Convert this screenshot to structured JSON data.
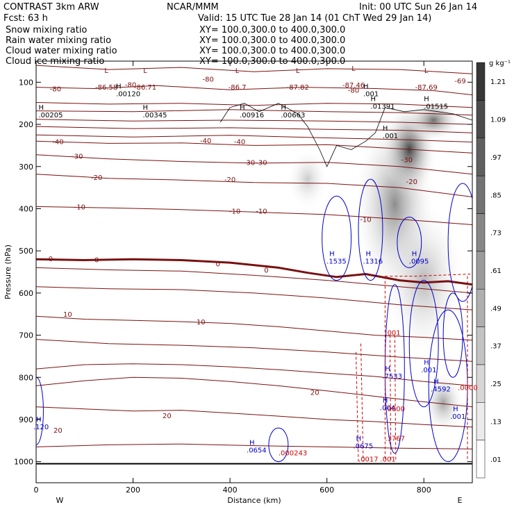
{
  "header": {
    "model": "CONTRAST   3km ARW",
    "center": "NCAR/MMM",
    "init": "Init: 00 UTC Sun 26 Jan 14",
    "fcst": "Fcst:     63 h",
    "valid": "Valid: 15 UTC Tue 28 Jan 14 (01 ChT Wed 29 Jan 14)"
  },
  "fields": [
    {
      "label": "Snow mixing ratio",
      "xy": "XY= 100.0,300.0 to 400.0,300.0",
      "color": "#000000"
    },
    {
      "label": "Rain water mixing ratio",
      "xy": "XY= 100.0,300.0 to 400.0,300.0",
      "color": "#cc0000"
    },
    {
      "label": "Cloud water mixing ratio",
      "xy": "XY= 100.0,300.0 to 400.0,300.0",
      "color": "#0000cc"
    },
    {
      "label": "Cloud ice mixing ratio",
      "xy": "XY= 100.0,300.0 to 400.0,300.0",
      "color": "#000000"
    }
  ],
  "chart_data": {
    "type": "heatmap",
    "xlabel": "Distance (km)",
    "ylabel": "Pressure (hPa)",
    "xlim": [
      0,
      900
    ],
    "ylim": [
      1050,
      50
    ],
    "x_ticks": [
      0,
      200,
      400,
      600,
      800
    ],
    "y_ticks": [
      100,
      200,
      300,
      400,
      500,
      600,
      700,
      800,
      900,
      1000
    ],
    "x_end_labels": {
      "left": "W",
      "right": "E"
    },
    "colorbar": {
      "units": "g kg⁻¹",
      "levels": [
        0.01,
        0.13,
        0.25,
        0.37,
        0.49,
        0.61,
        0.73,
        0.85,
        0.97,
        1.09,
        1.21
      ],
      "labels": [
        ".01",
        ".13",
        ".25",
        ".37",
        ".49",
        ".61",
        ".73",
        ".85",
        ".97",
        "1.09",
        "1.21"
      ]
    },
    "temperature_contours": [
      {
        "label": "-80",
        "points": [
          [
            0,
            60
          ],
          [
            150,
            70
          ],
          [
            300,
            65
          ],
          [
            450,
            75
          ],
          [
            600,
            68
          ],
          [
            750,
            70
          ],
          [
            900,
            80
          ]
        ]
      },
      {
        "label": "-80",
        "points": [
          [
            0,
            112
          ],
          [
            120,
            115
          ],
          [
            250,
            108
          ],
          [
            400,
            118
          ],
          [
            550,
            112
          ],
          [
            700,
            115
          ],
          [
            820,
            120
          ],
          [
            900,
            130
          ]
        ]
      },
      {
        "label": "",
        "points": [
          [
            0,
            148
          ],
          [
            150,
            152
          ],
          [
            300,
            150
          ],
          [
            450,
            155
          ],
          [
            600,
            150
          ],
          [
            750,
            152
          ],
          [
            900,
            160
          ]
        ]
      },
      {
        "label": "",
        "points": [
          [
            0,
            168
          ],
          [
            200,
            170
          ],
          [
            400,
            165
          ],
          [
            600,
            170
          ],
          [
            750,
            172
          ],
          [
            900,
            178
          ]
        ]
      },
      {
        "label": "",
        "points": [
          [
            0,
            188
          ],
          [
            200,
            192
          ],
          [
            400,
            190
          ],
          [
            600,
            192
          ],
          [
            750,
            195
          ],
          [
            900,
            200
          ]
        ]
      },
      {
        "label": "",
        "points": [
          [
            0,
            205
          ],
          [
            200,
            210
          ],
          [
            400,
            208
          ],
          [
            600,
            212
          ],
          [
            750,
            214
          ],
          [
            900,
            220
          ]
        ]
      },
      {
        "label": "",
        "points": [
          [
            0,
            225
          ],
          [
            200,
            230
          ],
          [
            400,
            226
          ],
          [
            600,
            232
          ],
          [
            750,
            236
          ],
          [
            900,
            242
          ]
        ]
      },
      {
        "label": "-40",
        "points": [
          [
            0,
            240
          ],
          [
            150,
            245
          ],
          [
            300,
            244
          ],
          [
            450,
            250
          ],
          [
            600,
            248
          ],
          [
            750,
            258
          ],
          [
            900,
            268
          ]
        ]
      },
      {
        "label": "-30",
        "points": [
          [
            0,
            272
          ],
          [
            150,
            282
          ],
          [
            300,
            288
          ],
          [
            450,
            292
          ],
          [
            600,
            290
          ],
          [
            750,
            300
          ],
          [
            900,
            318
          ]
        ]
      },
      {
        "label": "-20",
        "points": [
          [
            0,
            318
          ],
          [
            150,
            328
          ],
          [
            300,
            332
          ],
          [
            450,
            338
          ],
          [
            600,
            340
          ],
          [
            750,
            350
          ],
          [
            900,
            372
          ]
        ]
      },
      {
        "label": "-10",
        "points": [
          [
            0,
            395
          ],
          [
            150,
            398
          ],
          [
            300,
            402
          ],
          [
            450,
            408
          ],
          [
            600,
            414
          ],
          [
            750,
            425
          ],
          [
            900,
            438
          ]
        ]
      },
      {
        "label": "0",
        "points": [
          [
            0,
            520
          ],
          [
            100,
            522
          ],
          [
            200,
            520
          ],
          [
            300,
            522
          ],
          [
            400,
            528
          ],
          [
            500,
            540
          ],
          [
            560,
            552
          ],
          [
            620,
            562
          ],
          [
            680,
            555
          ],
          [
            750,
            570
          ],
          [
            800,
            575
          ],
          [
            850,
            572
          ],
          [
            900,
            580
          ]
        ]
      },
      {
        "label": "",
        "points": [
          [
            0,
            540
          ],
          [
            150,
            545
          ],
          [
            300,
            548
          ],
          [
            450,
            558
          ],
          [
            600,
            570
          ],
          [
            750,
            585
          ],
          [
            900,
            600
          ]
        ]
      },
      {
        "label": "",
        "points": [
          [
            0,
            585
          ],
          [
            150,
            590
          ],
          [
            300,
            592
          ],
          [
            450,
            600
          ],
          [
            600,
            612
          ],
          [
            750,
            628
          ],
          [
            900,
            640
          ]
        ]
      },
      {
        "label": "10",
        "points": [
          [
            0,
            655
          ],
          [
            100,
            662
          ],
          [
            200,
            665
          ],
          [
            300,
            668
          ],
          [
            400,
            672
          ],
          [
            500,
            680
          ],
          [
            600,
            690
          ],
          [
            700,
            700
          ],
          [
            800,
            705
          ],
          [
            900,
            712
          ]
        ]
      },
      {
        "label": "",
        "points": [
          [
            0,
            710
          ],
          [
            150,
            720
          ],
          [
            300,
            724
          ],
          [
            450,
            730
          ],
          [
            600,
            740
          ],
          [
            750,
            752
          ],
          [
            900,
            762
          ]
        ]
      },
      {
        "label": "",
        "points": [
          [
            0,
            780
          ],
          [
            100,
            770
          ],
          [
            200,
            768
          ],
          [
            300,
            770
          ],
          [
            400,
            775
          ],
          [
            500,
            782
          ],
          [
            600,
            790
          ],
          [
            700,
            798
          ],
          [
            800,
            810
          ],
          [
            900,
            820
          ]
        ]
      },
      {
        "label": "20",
        "points": [
          [
            0,
            820
          ],
          [
            100,
            808
          ],
          [
            200,
            800
          ],
          [
            300,
            802
          ],
          [
            400,
            810
          ],
          [
            500,
            820
          ],
          [
            600,
            832
          ],
          [
            700,
            845
          ],
          [
            800,
            858
          ],
          [
            900,
            870
          ]
        ]
      },
      {
        "label": "20",
        "points": [
          [
            0,
            870
          ],
          [
            100,
            875
          ],
          [
            200,
            880
          ],
          [
            300,
            878
          ],
          [
            400,
            885
          ],
          [
            500,
            892
          ],
          [
            600,
            900
          ],
          [
            700,
            905
          ],
          [
            800,
            912
          ],
          [
            900,
            918
          ]
        ]
      },
      {
        "label": "",
        "points": [
          [
            0,
            965
          ],
          [
            150,
            960
          ],
          [
            300,
            958
          ],
          [
            450,
            962
          ],
          [
            600,
            965
          ],
          [
            750,
            968
          ],
          [
            900,
            970
          ]
        ]
      }
    ],
    "thick_zero_isotherm": {
      "points": [
        [
          0,
          520
        ],
        [
          100,
          522
        ],
        [
          200,
          520
        ],
        [
          300,
          522
        ],
        [
          400,
          528
        ],
        [
          500,
          540
        ],
        [
          560,
          552
        ],
        [
          620,
          562
        ],
        [
          680,
          555
        ],
        [
          750,
          570
        ],
        [
          800,
          575
        ],
        [
          850,
          572
        ],
        [
          900,
          580
        ]
      ]
    },
    "temperature_labels": [
      {
        "text": "-80",
        "x": 195,
        "p": 105
      },
      {
        "text": "-80",
        "x": 355,
        "p": 92
      },
      {
        "text": "-80",
        "x": 655,
        "p": 118
      },
      {
        "text": "-80",
        "x": 40,
        "p": 115
      },
      {
        "text": "-40",
        "x": 45,
        "p": 240
      },
      {
        "text": "-40",
        "x": 350,
        "p": 238
      },
      {
        "text": "-40",
        "x": 420,
        "p": 240
      },
      {
        "text": "-30",
        "x": 85,
        "p": 275
      },
      {
        "text": "-30",
        "x": 440,
        "p": 290
      },
      {
        "text": "-30",
        "x": 465,
        "p": 290
      },
      {
        "text": "-30",
        "x": 765,
        "p": 283
      },
      {
        "text": "-20",
        "x": 125,
        "p": 325
      },
      {
        "text": "-20",
        "x": 400,
        "p": 330
      },
      {
        "text": "-20",
        "x": 775,
        "p": 335
      },
      {
        "text": "-10",
        "x": 90,
        "p": 395
      },
      {
        "text": "-10",
        "x": 410,
        "p": 405
      },
      {
        "text": "-10",
        "x": 465,
        "p": 405
      },
      {
        "text": "-10",
        "x": 680,
        "p": 425
      },
      {
        "text": "0",
        "x": 30,
        "p": 518
      },
      {
        "text": "0",
        "x": 125,
        "p": 520
      },
      {
        "text": "0",
        "x": 375,
        "p": 530
      },
      {
        "text": "0",
        "x": 475,
        "p": 545
      },
      {
        "text": "10",
        "x": 65,
        "p": 650
      },
      {
        "text": "10",
        "x": 340,
        "p": 668
      },
      {
        "text": "20",
        "x": 575,
        "p": 835
      },
      {
        "text": "20",
        "x": 270,
        "p": 890
      },
      {
        "text": "20",
        "x": 45,
        "p": 925
      }
    ],
    "low_centers": [
      {
        "text": "L",
        "value": "-86.58",
        "x": 145,
        "p": 85
      },
      {
        "text": "L",
        "value": "-86.71",
        "x": 225,
        "p": 85
      },
      {
        "text": "L",
        "value": "-86.7",
        "x": 415,
        "p": 85
      },
      {
        "text": "L",
        "value": "-87.82",
        "x": 540,
        "p": 85
      },
      {
        "text": "L",
        "value": "-87.46",
        "x": 655,
        "p": 80
      },
      {
        "text": "L",
        "value": "-87.69",
        "x": 805,
        "p": 85
      },
      {
        "text": "",
        "value": "-69",
        "x": 875,
        "p": 70
      }
    ],
    "high_centers_snow": [
      {
        "value": ".00120",
        "x": 165,
        "p": 115
      },
      {
        "value": ".00205",
        "x": 5,
        "p": 165
      },
      {
        "value": ".00345",
        "x": 220,
        "p": 165
      },
      {
        "value": ".00916",
        "x": 420,
        "p": 165
      },
      {
        "value": ".00663",
        "x": 505,
        "p": 165
      },
      {
        "value": ".01391",
        "x": 690,
        "p": 145
      },
      {
        "value": ".01515",
        "x": 800,
        "p": 145
      },
      {
        "value": ".001",
        "x": 675,
        "p": 115
      },
      {
        "value": ".001",
        "x": 715,
        "p": 215
      }
    ],
    "high_centers_cloud_water": [
      {
        "value": ".1535",
        "x": 605,
        "p": 512
      },
      {
        "value": ".1316",
        "x": 680,
        "p": 512
      },
      {
        "value": ".0095",
        "x": 775,
        "p": 512
      },
      {
        "value": ".7533",
        "x": 720,
        "p": 785
      },
      {
        "value": ".001",
        "x": 800,
        "p": 770
      },
      {
        "value": ".4592",
        "x": 820,
        "p": 815
      },
      {
        "value": ".004",
        "x": 715,
        "p": 860
      },
      {
        "value": ".0654",
        "x": 440,
        "p": 960
      },
      {
        "value": ".0675",
        "x": 660,
        "p": 950
      },
      {
        "value": ".120",
        "x": 0,
        "p": 905
      },
      {
        "value": ".001",
        "x": 860,
        "p": 880
      }
    ],
    "high_centers_rain": [
      {
        "value": ".001",
        "x": 720,
        "p": 700
      },
      {
        "value": ".000243",
        "x": 500,
        "p": 985
      },
      {
        "value": ".3767",
        "x": 720,
        "p": 950
      },
      {
        "value": ".0017",
        "x": 665,
        "p": 1000
      },
      {
        "value": ".001",
        "x": 710,
        "p": 1000
      },
      {
        "value": ".0000",
        "x": 870,
        "p": 830
      },
      {
        "value": ".0000",
        "x": 720,
        "p": 880
      }
    ],
    "snow_shading": [
      {
        "x": 560,
        "p": 270,
        "w": 60,
        "h": 120,
        "v": 0.25
      },
      {
        "x": 740,
        "p": 210,
        "w": 120,
        "h": 360,
        "v": 0.55
      },
      {
        "x": 770,
        "p": 170,
        "w": 80,
        "h": 180,
        "v": 0.9
      },
      {
        "x": 820,
        "p": 150,
        "w": 80,
        "h": 80,
        "v": 0.7
      },
      {
        "x": 800,
        "p": 420,
        "w": 120,
        "h": 300,
        "v": 0.35
      },
      {
        "x": 840,
        "p": 800,
        "w": 60,
        "h": 120,
        "v": 0.45
      }
    ]
  }
}
